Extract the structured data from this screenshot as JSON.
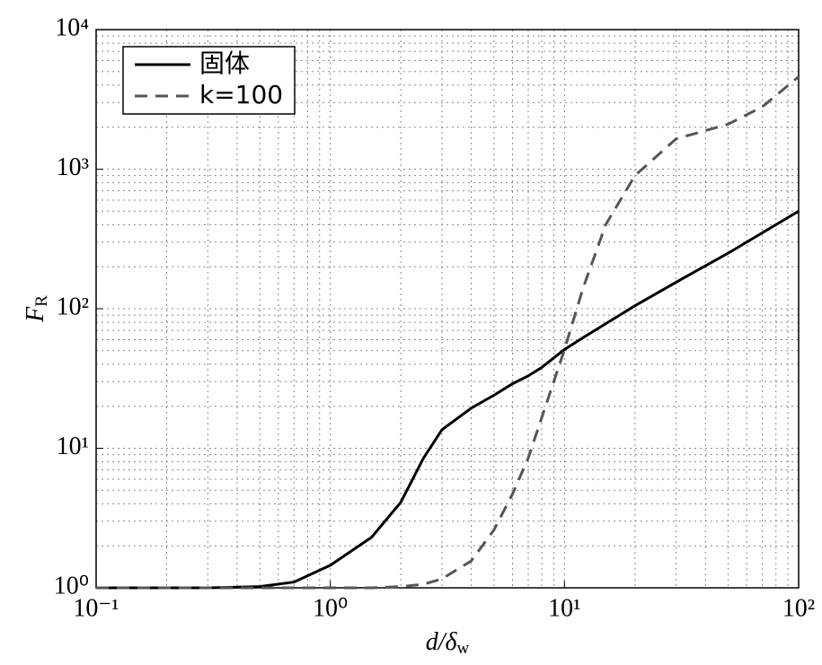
{
  "chart_data": {
    "type": "line",
    "ylabel": "F",
    "ylabel_sub": "R",
    "xlabel": "d/δ",
    "xlabel_sub": "w",
    "log_x": true,
    "log_y": true,
    "grid": true,
    "legend": "upper left",
    "xlim": [
      0.1,
      100
    ],
    "ylim": [
      1,
      10000
    ],
    "xticks": [
      {
        "value": 0.1,
        "label": "10⁻¹"
      },
      {
        "value": 1,
        "label": "10⁰"
      },
      {
        "value": 10,
        "label": "10¹"
      },
      {
        "value": 100,
        "label": "10²"
      }
    ],
    "yticks": [
      {
        "value": 1,
        "label": "10⁰"
      },
      {
        "value": 10,
        "label": "10¹"
      },
      {
        "value": 100,
        "label": "10²"
      },
      {
        "value": 1000,
        "label": "10³"
      },
      {
        "value": 10000,
        "label": "10⁴"
      }
    ],
    "xminorticks": [
      0.2,
      0.3,
      0.4,
      0.5,
      0.6,
      0.7,
      0.8,
      0.9,
      2,
      3,
      4,
      5,
      6,
      7,
      8,
      9,
      20,
      30,
      40,
      50,
      60,
      70,
      80,
      90
    ],
    "yminorticks": [
      2,
      3,
      4,
      5,
      6,
      7,
      8,
      9,
      20,
      30,
      40,
      50,
      60,
      70,
      80,
      90,
      200,
      300,
      400,
      500,
      600,
      700,
      800,
      900,
      2000,
      3000,
      4000,
      5000,
      6000,
      7000,
      8000,
      9000
    ],
    "x": [
      0.1,
      0.2,
      0.3,
      0.5,
      0.7,
      1,
      1.5,
      2,
      2.5,
      3,
      4,
      5,
      6,
      7,
      8,
      10,
      12,
      15,
      20,
      30,
      50,
      70,
      100
    ],
    "series": [
      {
        "name": "固体",
        "color": "#000000",
        "dash": "solid",
        "values": [
          1,
          1,
          1,
          1.02,
          1.1,
          1.45,
          2.3,
          4.1,
          8.5,
          13.6,
          19.4,
          24,
          29,
          33,
          38,
          51,
          62,
          78,
          105,
          155,
          250,
          350,
          500
        ]
      },
      {
        "name": "k=100",
        "color": "#555555",
        "dash": "dashed",
        "values": [
          1,
          1,
          1,
          1,
          1,
          1,
          1,
          1.02,
          1.06,
          1.16,
          1.56,
          2.6,
          4.7,
          8.5,
          16.6,
          51,
          140,
          400,
          900,
          1650,
          2100,
          2800,
          4600
        ]
      }
    ]
  }
}
